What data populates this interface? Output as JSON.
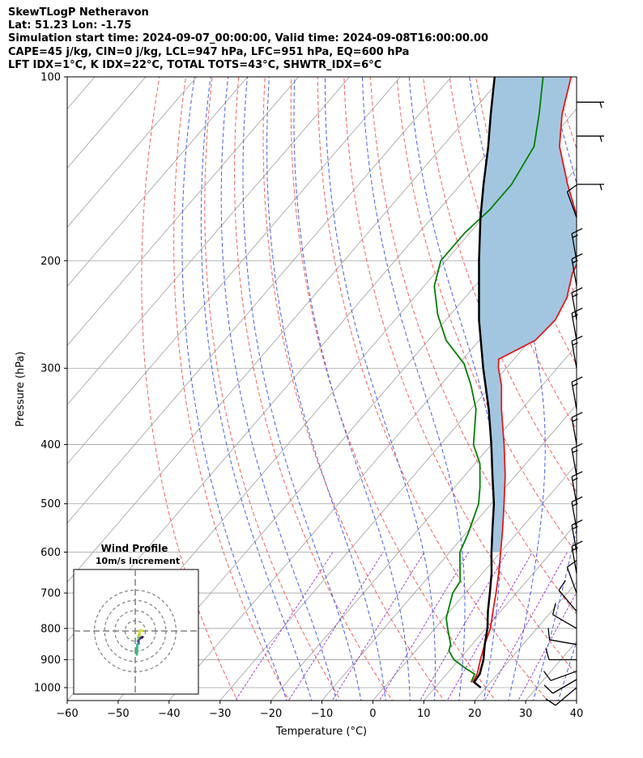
{
  "header": {
    "line1": "SkewTLogP Netheravon",
    "line2": "Lat: 51.23   Lon: -1.75",
    "line3": "Simulation start time: 2024-09-07_00:00:00, Valid time: 2024-09-08T16:00:00.00",
    "line4": "CAPE=45 j/kg, CIN=0 j/kg, LCL=947 hPa, LFC=951 hPa, EQ=600 hPa",
    "line5": "LFT IDX=1°C, K IDX=22°C, TOTAL TOTS=43°C, SHWTR_IDX=6°C"
  },
  "chart_data": {
    "type": "skewt",
    "xlabel": "Temperature (°C)",
    "ylabel": "Pressure (hPa)",
    "xlim": [
      -60,
      40
    ],
    "ylim": [
      1050,
      100
    ],
    "x_ticks": [
      -60,
      -50,
      -40,
      -30,
      -20,
      -10,
      0,
      10,
      20,
      30,
      40
    ],
    "x_tick_labels": [
      "−60",
      "−50",
      "−40",
      "−30",
      "−20",
      "−10",
      "0",
      "10",
      "20",
      "30",
      "40"
    ],
    "p_ticks": [
      1000,
      900,
      800,
      700,
      600,
      500,
      400,
      300,
      200,
      100
    ],
    "p_tick_labels": [
      "1000",
      "900",
      "800",
      "700",
      "600",
      "500",
      "400",
      "300",
      "200",
      "100"
    ],
    "colors": {
      "temperature": "#e31a1c",
      "dewpoint": "#008000",
      "parcel": "#000000",
      "cape_fill": "#a3c6e0",
      "dry_adiabat": "#f06060",
      "moist_adiabat": "#4a5ce8",
      "mixing_ratio": "#9a30c8",
      "isotherm": "#a0a0a0"
    },
    "temperature_profile": [
      {
        "p": 980,
        "t": 16.5
      },
      {
        "p": 950,
        "t": 16.0
      },
      {
        "p": 900,
        "t": 14.2
      },
      {
        "p": 850,
        "t": 12.5
      },
      {
        "p": 800,
        "t": 10.9
      },
      {
        "p": 750,
        "t": 8.5
      },
      {
        "p": 700,
        "t": 6.0
      },
      {
        "p": 650,
        "t": 3.2
      },
      {
        "p": 600,
        "t": 0.0
      },
      {
        "p": 550,
        "t": -3.5
      },
      {
        "p": 500,
        "t": -7.5
      },
      {
        "p": 450,
        "t": -12.0
      },
      {
        "p": 400,
        "t": -17.5
      },
      {
        "p": 350,
        "t": -24.0
      },
      {
        "p": 320,
        "t": -28.0
      },
      {
        "p": 300,
        "t": -31.5
      },
      {
        "p": 290,
        "t": -33.0
      },
      {
        "p": 270,
        "t": -29.0
      },
      {
        "p": 250,
        "t": -28.5
      },
      {
        "p": 230,
        "t": -30.0
      },
      {
        "p": 210,
        "t": -33.0
      },
      {
        "p": 200,
        "t": -34.0
      },
      {
        "p": 185,
        "t": -37.0
      },
      {
        "p": 170,
        "t": -41.5
      },
      {
        "p": 150,
        "t": -49.0
      },
      {
        "p": 130,
        "t": -57.0
      },
      {
        "p": 115,
        "t": -62.0
      },
      {
        "p": 100,
        "t": -66.5
      }
    ],
    "dewpoint_profile": [
      {
        "p": 980,
        "td": 16.2
      },
      {
        "p": 950,
        "td": 15.5
      },
      {
        "p": 930,
        "td": 12.8
      },
      {
        "p": 900,
        "td": 9.0
      },
      {
        "p": 870,
        "td": 6.5
      },
      {
        "p": 850,
        "td": 5.8
      },
      {
        "p": 800,
        "td": 2.5
      },
      {
        "p": 770,
        "td": 0.5
      },
      {
        "p": 700,
        "td": -2.5
      },
      {
        "p": 670,
        "td": -3.0
      },
      {
        "p": 600,
        "td": -8.0
      },
      {
        "p": 560,
        "td": -9.5
      },
      {
        "p": 500,
        "td": -12.5
      },
      {
        "p": 470,
        "td": -15.0
      },
      {
        "p": 430,
        "td": -19.0
      },
      {
        "p": 400,
        "td": -23.5
      },
      {
        "p": 350,
        "td": -29.0
      },
      {
        "p": 320,
        "td": -34.0
      },
      {
        "p": 295,
        "td": -39.0
      },
      {
        "p": 270,
        "td": -46.5
      },
      {
        "p": 245,
        "td": -52.5
      },
      {
        "p": 220,
        "td": -58.0
      },
      {
        "p": 200,
        "td": -61.0
      },
      {
        "p": 180,
        "td": -61.0
      },
      {
        "p": 165,
        "td": -60.0
      },
      {
        "p": 150,
        "td": -60.0
      },
      {
        "p": 130,
        "td": -62.0
      },
      {
        "p": 115,
        "td": -66.5
      },
      {
        "p": 100,
        "td": -72.0
      }
    ],
    "parcel_profile": [
      {
        "p": 1000,
        "t": 19.0
      },
      {
        "p": 980,
        "t": 16.8
      },
      {
        "p": 950,
        "t": 16.5
      },
      {
        "p": 900,
        "t": 14.8
      },
      {
        "p": 850,
        "t": 12.5
      },
      {
        "p": 800,
        "t": 10.3
      },
      {
        "p": 750,
        "t": 7.5
      },
      {
        "p": 700,
        "t": 4.8
      },
      {
        "p": 650,
        "t": 1.8
      },
      {
        "p": 600,
        "t": -1.8
      },
      {
        "p": 550,
        "t": -5.5
      },
      {
        "p": 500,
        "t": -9.5
      },
      {
        "p": 450,
        "t": -14.5
      },
      {
        "p": 400,
        "t": -20.0
      },
      {
        "p": 350,
        "t": -26.5
      },
      {
        "p": 300,
        "t": -34.5
      },
      {
        "p": 250,
        "t": -43.5
      },
      {
        "p": 200,
        "t": -53.5
      },
      {
        "p": 170,
        "t": -60.5
      },
      {
        "p": 150,
        "t": -65.5
      },
      {
        "p": 130,
        "t": -71.0
      },
      {
        "p": 115,
        "t": -76.0
      },
      {
        "p": 100,
        "t": -81.5
      }
    ],
    "wind_barbs": [
      {
        "p": 1000,
        "dir": 230,
        "kt": 10
      },
      {
        "p": 970,
        "dir": 240,
        "kt": 10
      },
      {
        "p": 940,
        "dir": 250,
        "kt": 10
      },
      {
        "p": 900,
        "dir": 270,
        "kt": 10
      },
      {
        "p": 850,
        "dir": 280,
        "kt": 10
      },
      {
        "p": 800,
        "dir": 300,
        "kt": 10
      },
      {
        "p": 750,
        "dir": 320,
        "kt": 10
      },
      {
        "p": 700,
        "dir": 340,
        "kt": 10
      },
      {
        "p": 650,
        "dir": 350,
        "kt": 15
      },
      {
        "p": 600,
        "dir": 350,
        "kt": 15
      },
      {
        "p": 550,
        "dir": 350,
        "kt": 15
      },
      {
        "p": 500,
        "dir": 350,
        "kt": 15
      },
      {
        "p": 450,
        "dir": 350,
        "kt": 15
      },
      {
        "p": 400,
        "dir": 350,
        "kt": 15
      },
      {
        "p": 350,
        "dir": 350,
        "kt": 15
      },
      {
        "p": 300,
        "dir": 350,
        "kt": 15
      },
      {
        "p": 270,
        "dir": 350,
        "kt": 15
      },
      {
        "p": 250,
        "dir": 350,
        "kt": 15
      },
      {
        "p": 220,
        "dir": 350,
        "kt": 15
      },
      {
        "p": 200,
        "dir": 350,
        "kt": 15
      },
      {
        "p": 170,
        "dir": 340,
        "kt": 10
      },
      {
        "p": 150,
        "dir": 90,
        "kt": 5
      },
      {
        "p": 125,
        "dir": 90,
        "kt": 5
      },
      {
        "p": 110,
        "dir": 90,
        "kt": 5
      }
    ],
    "hodograph": {
      "title": "Wind Profile",
      "subtitle": "10m/s increment",
      "ring_increment_ms": 10,
      "points": [
        {
          "u": 1.5,
          "v": -23.0
        },
        {
          "u": 1.8,
          "v": -17.0
        },
        {
          "u": 2.0,
          "v": -13.5
        },
        {
          "u": 3.5,
          "v": -12.0
        },
        {
          "u": 3.0,
          "v": -10.0
        },
        {
          "u": 4.0,
          "v": -7.5
        },
        {
          "u": 7.0,
          "v": -6.0
        },
        {
          "u": 5.0,
          "v": -7.0
        },
        {
          "u": 3.0,
          "v": -7.0
        },
        {
          "u": 3.5,
          "v": -4.5
        },
        {
          "u": 4.5,
          "v": -4.0
        },
        {
          "u": 4.0,
          "v": -2.0
        },
        {
          "u": 4.5,
          "v": 0.5
        },
        {
          "u": 6.5,
          "v": 0.5
        }
      ]
    }
  }
}
